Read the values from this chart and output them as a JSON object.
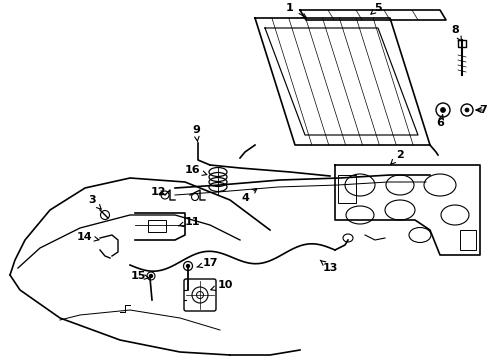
{
  "background_color": "#ffffff",
  "line_color": "#000000",
  "fig_width": 4.89,
  "fig_height": 3.6,
  "dpi": 100,
  "label_fontsize": 8.0
}
